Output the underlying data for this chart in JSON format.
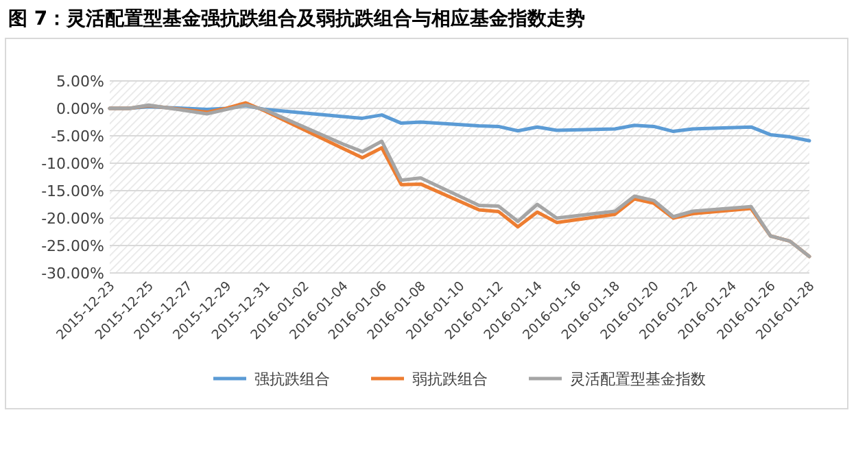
{
  "chart_data": {
    "type": "line",
    "title": "图 7：灵活配置型基金强抗跌组合及弱抗跌组合与相应基金指数走势",
    "x": [
      "2015-12-23",
      "2015-12-24",
      "2015-12-25",
      "2015-12-28",
      "2015-12-29",
      "2015-12-30",
      "2015-12-31",
      "2016-01-04",
      "2016-01-05",
      "2016-01-06",
      "2016-01-07",
      "2016-01-08",
      "2016-01-11",
      "2016-01-12",
      "2016-01-13",
      "2016-01-14",
      "2016-01-15",
      "2016-01-18",
      "2016-01-19",
      "2016-01-20",
      "2016-01-21",
      "2016-01-22",
      "2016-01-25",
      "2016-01-26",
      "2016-01-27",
      "2016-01-28"
    ],
    "series": [
      {
        "name": "强抗跌组合",
        "color": "#5b9bd5",
        "values": [
          0,
          0,
          0.3,
          -0.2,
          0,
          0.5,
          -0.2,
          -1.5,
          -1.8,
          -1.2,
          -2.7,
          -2.5,
          -3.2,
          -3.3,
          -4.1,
          -3.4,
          -4.0,
          -3.75,
          -3.1,
          -3.3,
          -4.2,
          -3.75,
          -3.4,
          -4.8,
          -5.2,
          -5.9
        ]
      },
      {
        "name": "弱抗跌组合",
        "color": "#ed7d31",
        "values": [
          0,
          0,
          0.5,
          -0.7,
          0,
          1.0,
          -0.5,
          -7.3,
          -9,
          -7.2,
          -13.9,
          -13.8,
          -18.5,
          -18.8,
          -21.6,
          -18.9,
          -20.8,
          -19.3,
          -16.5,
          -17.3,
          -20,
          -19.2,
          -18.25,
          -23.25,
          -24.2,
          -27
        ]
      },
      {
        "name": "灵活配置型基金指数",
        "color": "#a5a5a5",
        "values": [
          0,
          0,
          0.6,
          -1.0,
          -0.2,
          0.6,
          -0.3,
          -6.5,
          -7.9,
          -6,
          -13.1,
          -12.7,
          -17.7,
          -17.8,
          -20.6,
          -17.5,
          -20,
          -18.75,
          -16,
          -16.8,
          -19.75,
          -18.75,
          -17.9,
          -23.25,
          -24.2,
          -27
        ]
      }
    ],
    "xlim": [
      "2015-12-23",
      "2016-01-28"
    ],
    "xticks": [
      "2015-12-23",
      "2015-12-25",
      "2015-12-27",
      "2015-12-29",
      "2015-12-31",
      "2016-01-02",
      "2016-01-04",
      "2016-01-06",
      "2016-01-08",
      "2016-01-10",
      "2016-01-12",
      "2016-01-14",
      "2016-01-16",
      "2016-01-18",
      "2016-01-20",
      "2016-01-22",
      "2016-01-24",
      "2016-01-26",
      "2016-01-28"
    ],
    "ylim": [
      -30,
      5
    ],
    "yticks": [
      {
        "value": 5,
        "label": "5.00%"
      },
      {
        "value": 0,
        "label": "0.00%"
      },
      {
        "value": -5,
        "label": "-5.00%"
      },
      {
        "value": -10,
        "label": "-10.00%"
      },
      {
        "value": -15,
        "label": "-15.00%"
      },
      {
        "value": -20,
        "label": "-20.00%"
      },
      {
        "value": -25,
        "label": "-25.00%"
      },
      {
        "value": -30,
        "label": "-30.00%"
      }
    ],
    "grid": "y",
    "legend": "bottom",
    "marker": "none",
    "line_style": "solid"
  }
}
